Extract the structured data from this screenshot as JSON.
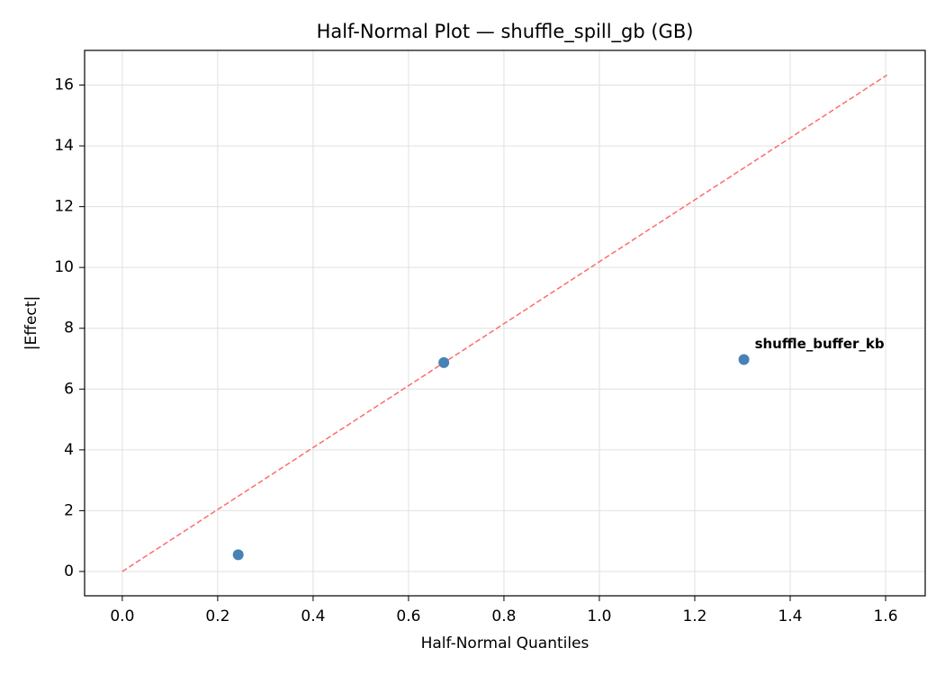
{
  "chart_data": {
    "type": "scatter",
    "title": "Half-Normal Plot — shuffle_spill_gb (GB)",
    "x_label": "Half-Normal Quantiles",
    "y_label": "|Effect|",
    "series": [
      {
        "color": "#4682b4",
        "x": [
          0.243,
          0.674,
          1.303
        ],
        "values": [
          0.55,
          6.87,
          6.97
        ]
      }
    ],
    "reference_line": {
      "color": "#ff6b6b",
      "x": [
        0,
        1.603
      ],
      "values": [
        0,
        16.33
      ]
    },
    "annotations": [
      {
        "text": "shuffle_buffer_kb",
        "x": 1.303,
        "y": 6.97,
        "color": "#ff0000"
      }
    ],
    "xlim": [
      -0.079,
      1.683
    ],
    "ylim": [
      -0.8,
      17.14
    ],
    "xticks": [
      {
        "value": 0,
        "label": "0.0"
      },
      0.2,
      0.4,
      0.6,
      0.8,
      {
        "value": 1,
        "label": "1.0"
      },
      1.2,
      1.4,
      1.6
    ],
    "yticks": [
      0,
      2,
      4,
      6,
      8,
      10,
      12,
      14,
      16
    ],
    "grid": true
  }
}
